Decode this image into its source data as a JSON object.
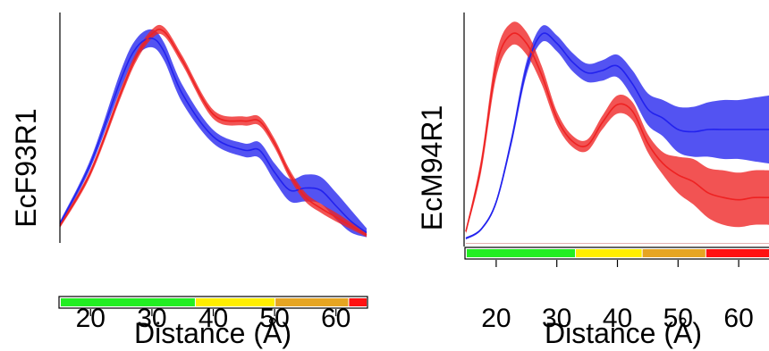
{
  "colors": {
    "series_blue": "#2222ee",
    "series_red": "#ee2222",
    "bar_green": "#22ee22",
    "bar_yellow": "#ffee00",
    "bar_orange": "#e6a522",
    "bar_red": "#ff1111",
    "axis": "#000000"
  },
  "chart_data": [
    {
      "type": "area",
      "title": "",
      "ylabel": "EcF93R1",
      "xlabel": "Distance (Å)",
      "xlim": [
        15,
        65
      ],
      "ylim": [
        0,
        1
      ],
      "x_ticks": [
        20,
        30,
        40,
        50,
        60
      ],
      "grid": false,
      "legend": "none",
      "series": [
        {
          "color": "#2222ee",
          "x": [
            15,
            20,
            25,
            27.5,
            30,
            32,
            35,
            40,
            45,
            47.5,
            50,
            52.5,
            55,
            57.5,
            60,
            62.5,
            65
          ],
          "values": [
            0.07,
            0.34,
            0.72,
            0.86,
            0.9,
            0.84,
            0.65,
            0.46,
            0.4,
            0.4,
            0.3,
            0.22,
            0.23,
            0.22,
            0.15,
            0.08,
            0.03
          ],
          "band": [
            0.01,
            0.02,
            0.04,
            0.04,
            0.04,
            0.04,
            0.04,
            0.03,
            0.03,
            0.035,
            0.04,
            0.05,
            0.06,
            0.06,
            0.06,
            0.05,
            0.02
          ]
        },
        {
          "color": "#ee2222",
          "x": [
            15,
            20,
            25,
            27.5,
            30,
            32,
            35,
            40,
            45,
            47.5,
            50,
            52.5,
            55,
            57.5,
            60,
            62.5,
            65
          ],
          "values": [
            0.06,
            0.3,
            0.66,
            0.82,
            0.92,
            0.93,
            0.8,
            0.56,
            0.53,
            0.53,
            0.43,
            0.29,
            0.19,
            0.14,
            0.1,
            0.06,
            0.02
          ],
          "band": [
            0.01,
            0.015,
            0.02,
            0.02,
            0.02,
            0.02,
            0.02,
            0.02,
            0.02,
            0.02,
            0.02,
            0.02,
            0.02,
            0.02,
            0.02,
            0.015,
            0.01
          ]
        }
      ],
      "color_bar": [
        {
          "from": 15,
          "to": 37,
          "color": "#22ee22"
        },
        {
          "from": 37,
          "to": 50,
          "color": "#ffee00"
        },
        {
          "from": 50,
          "to": 62,
          "color": "#e6a522"
        },
        {
          "from": 62,
          "to": 65,
          "color": "#ff1111"
        }
      ]
    },
    {
      "type": "area",
      "title": "",
      "ylabel": "EcM94R1",
      "xlabel": "Distance (Å)",
      "xlim": [
        15,
        65
      ],
      "ylim": [
        0,
        1
      ],
      "x_ticks": [
        20,
        30,
        40,
        50,
        60
      ],
      "grid": false,
      "legend": "none",
      "series": [
        {
          "color": "#2222ee",
          "x": [
            15,
            17.5,
            20,
            22.5,
            25,
            27.5,
            30,
            32.5,
            35,
            37.5,
            40,
            42.5,
            45,
            47.5,
            50,
            52.5,
            55,
            57.5,
            60,
            62.5,
            65
          ],
          "values": [
            0.02,
            0.06,
            0.18,
            0.45,
            0.77,
            0.92,
            0.88,
            0.8,
            0.75,
            0.76,
            0.78,
            0.7,
            0.59,
            0.55,
            0.5,
            0.49,
            0.5,
            0.5,
            0.5,
            0.5,
            0.5
          ],
          "band": [
            0.005,
            0.005,
            0.01,
            0.02,
            0.03,
            0.035,
            0.035,
            0.04,
            0.04,
            0.045,
            0.05,
            0.06,
            0.07,
            0.08,
            0.1,
            0.11,
            0.12,
            0.13,
            0.13,
            0.14,
            0.15
          ]
        },
        {
          "color": "#ee2222",
          "x": [
            15,
            17.5,
            20,
            22.5,
            25,
            27.5,
            30,
            32.5,
            35,
            37.5,
            40,
            42.5,
            45,
            47.5,
            50,
            52.5,
            55,
            57.5,
            60,
            62.5,
            65
          ],
          "values": [
            0.05,
            0.34,
            0.78,
            0.92,
            0.88,
            0.74,
            0.55,
            0.45,
            0.43,
            0.53,
            0.61,
            0.58,
            0.44,
            0.35,
            0.3,
            0.27,
            0.22,
            0.2,
            0.19,
            0.2,
            0.2
          ],
          "band": [
            0.01,
            0.03,
            0.05,
            0.05,
            0.05,
            0.04,
            0.03,
            0.025,
            0.025,
            0.03,
            0.04,
            0.04,
            0.04,
            0.05,
            0.08,
            0.1,
            0.11,
            0.12,
            0.12,
            0.12,
            0.12
          ]
        }
      ],
      "color_bar": [
        {
          "from": 15,
          "to": 33,
          "color": "#22ee22"
        },
        {
          "from": 33,
          "to": 44,
          "color": "#ffee00"
        },
        {
          "from": 44,
          "to": 54.5,
          "color": "#e6a522"
        },
        {
          "from": 54.5,
          "to": 65,
          "color": "#ff1111"
        }
      ]
    }
  ]
}
